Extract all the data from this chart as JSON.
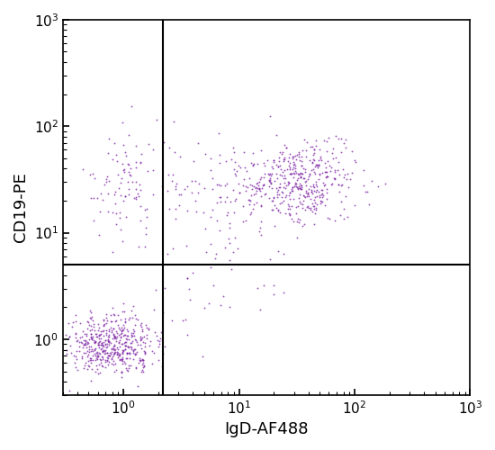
{
  "title": "",
  "xlabel": "IgD-AF488",
  "ylabel": "CD19-PE",
  "xlim": [
    0.3,
    1000
  ],
  "ylim": [
    0.3,
    1000
  ],
  "dot_color": "#7B1FA2",
  "dot_alpha": 0.75,
  "dot_size": 1.8,
  "quadrant_line_x": 2.2,
  "quadrant_line_y": 5.0,
  "background_color": "#ffffff",
  "clusters": [
    {
      "name": "bottom_left",
      "center_x_log": -0.1,
      "center_y_log": -0.05,
      "spread_x": 0.2,
      "spread_y": 0.15,
      "n_points": 500
    },
    {
      "name": "top_left",
      "center_x_log": 0.05,
      "center_y_log": 1.5,
      "spread_x": 0.18,
      "spread_y": 0.28,
      "n_points": 100
    },
    {
      "name": "top_right_main",
      "center_x_log": 1.55,
      "center_y_log": 1.48,
      "spread_x": 0.22,
      "spread_y": 0.18,
      "n_points": 380
    },
    {
      "name": "top_right_tail",
      "center_x_log": 1.0,
      "center_y_log": 1.35,
      "spread_x": 0.28,
      "spread_y": 0.28,
      "n_points": 150
    },
    {
      "name": "bottom_right_sparse",
      "center_x_log": 0.85,
      "center_y_log": 0.55,
      "spread_x": 0.3,
      "spread_y": 0.25,
      "n_points": 30
    }
  ]
}
